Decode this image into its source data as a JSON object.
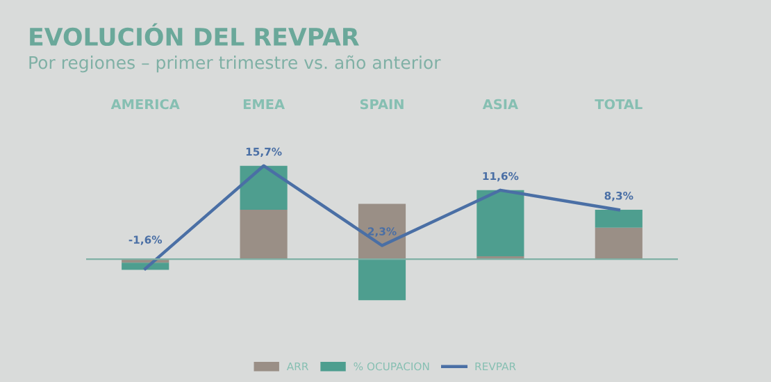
{
  "chart_data": {
    "type": "bar",
    "title": "EVOLUCIÓN DEL REVPAR",
    "subtitle": "Por regiones – primer trimestre vs. año anterior",
    "categories": [
      "AMERICA",
      "EMEA",
      "SPAIN",
      "ASIA",
      "TOTAL"
    ],
    "stacked": true,
    "legend": "bottom",
    "grid": false,
    "ref_lines": [
      {
        "axis": "y",
        "value": 0,
        "color": "#7fb0a5"
      }
    ],
    "series": [
      {
        "name": "ARR",
        "color": "#9a8f86",
        "values": [
          -0.6,
          8.3,
          9.3,
          0.5,
          5.3
        ]
      },
      {
        "name": "% OCUPACION",
        "color": "#4e9e8f",
        "values": [
          -1.2,
          7.4,
          -6.9,
          11.1,
          3.0
        ]
      },
      {
        "name": "REVPAR",
        "type": "line",
        "color": "#4a6fa5",
        "marker": "none",
        "line_style": "solid",
        "values": [
          -1.6,
          15.7,
          2.3,
          11.6,
          8.3
        ],
        "value_labels": [
          "-1,6%",
          "15,7%",
          "2,3%",
          "11,6%",
          "8,3%"
        ]
      }
    ]
  }
}
